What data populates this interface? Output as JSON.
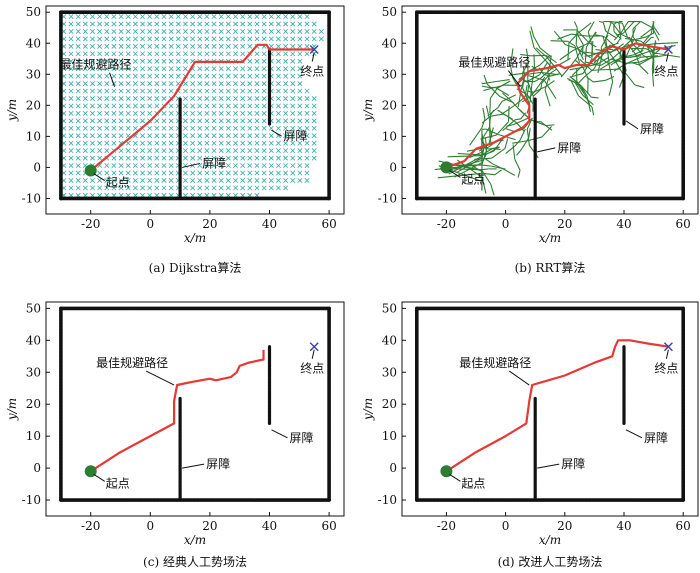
{
  "chart_data": [
    {
      "type": "line",
      "caption": "(a) Dijkstra算法",
      "xlabel": "x/m",
      "ylabel": "y/m",
      "xlim": [
        -35,
        65
      ],
      "ylim": [
        -15,
        52
      ],
      "xticks": [
        -20,
        0,
        20,
        40,
        60
      ],
      "yticks": [
        -10,
        0,
        10,
        20,
        30,
        40,
        50
      ],
      "labels": {
        "start": "起点",
        "goal": "终点",
        "obstacle": "屏障",
        "path": "最佳规避路径"
      },
      "start": [
        -20,
        -1
      ],
      "goal": [
        55,
        38
      ],
      "boundary": [
        [
          -30,
          -10
        ],
        [
          60,
          -10
        ],
        [
          60,
          50
        ],
        [
          -30,
          50
        ]
      ],
      "obstacles": [
        [
          [
            10,
            -10
          ],
          [
            10,
            22
          ]
        ],
        [
          [
            40,
            14
          ],
          [
            40,
            38
          ]
        ]
      ],
      "path": [
        [
          -20,
          -1
        ],
        [
          -10,
          7
        ],
        [
          0,
          15
        ],
        [
          8,
          23
        ],
        [
          15,
          34
        ],
        [
          31,
          34
        ],
        [
          36,
          39.5
        ],
        [
          39,
          39.5
        ],
        [
          40,
          38
        ],
        [
          55,
          38
        ]
      ],
      "explored_region": [
        [
          -29,
          49
        ],
        [
          53,
          49
        ],
        [
          54,
          47
        ],
        [
          58,
          45
        ],
        [
          57,
          36
        ],
        [
          52,
          34
        ],
        [
          51,
          27
        ],
        [
          57,
          22
        ],
        [
          56,
          6
        ],
        [
          53,
          -5
        ],
        [
          33,
          -10
        ],
        [
          -29,
          -10
        ]
      ],
      "explored_color": "#33aaaa"
    },
    {
      "type": "line",
      "caption": "(b) RRT算法",
      "xlabel": "x/m",
      "ylabel": "y/m",
      "xlim": [
        -35,
        65
      ],
      "ylim": [
        -15,
        52
      ],
      "xticks": [
        -20,
        0,
        20,
        40,
        60
      ],
      "yticks": [
        -10,
        0,
        10,
        20,
        30,
        40,
        50
      ],
      "labels": {
        "start": "起点",
        "goal": "终点",
        "obstacle": "屏障",
        "path": "最佳规避路径"
      },
      "start": [
        -20,
        0
      ],
      "goal": [
        55,
        38
      ],
      "boundary": [
        [
          -30,
          -10
        ],
        [
          60,
          -10
        ],
        [
          60,
          50
        ],
        [
          -30,
          50
        ]
      ],
      "obstacles": [
        [
          [
            10,
            -10
          ],
          [
            10,
            22
          ]
        ],
        [
          [
            40,
            14
          ],
          [
            40,
            38
          ]
        ]
      ],
      "path": [
        [
          -20,
          0
        ],
        [
          -14,
          2
        ],
        [
          -10,
          6
        ],
        [
          -4,
          8
        ],
        [
          2,
          11
        ],
        [
          6,
          13
        ],
        [
          8,
          15
        ],
        [
          8,
          20
        ],
        [
          5,
          24
        ],
        [
          4,
          27
        ],
        [
          8,
          31
        ],
        [
          14,
          32
        ],
        [
          18,
          33
        ],
        [
          20,
          32
        ],
        [
          24,
          33
        ],
        [
          28,
          33
        ],
        [
          32,
          37
        ],
        [
          36,
          39
        ],
        [
          40,
          38
        ],
        [
          44,
          40
        ],
        [
          49,
          39
        ],
        [
          55,
          38
        ]
      ],
      "tree_color": "#2e7d32"
    },
    {
      "type": "line",
      "caption": "(c) 经典人工势场法",
      "xlabel": "x/m",
      "ylabel": "y/m",
      "xlim": [
        -35,
        65
      ],
      "ylim": [
        -15,
        52
      ],
      "xticks": [
        -20,
        0,
        20,
        40,
        60
      ],
      "yticks": [
        -10,
        0,
        10,
        20,
        30,
        40,
        50
      ],
      "labels": {
        "start": "起点",
        "goal": "终点",
        "obstacle": "屏障",
        "path": "最佳规避路径"
      },
      "start": [
        -20,
        -1
      ],
      "goal": [
        55,
        38
      ],
      "boundary": [
        [
          -30,
          -10
        ],
        [
          60,
          -10
        ],
        [
          60,
          50
        ],
        [
          -30,
          50
        ]
      ],
      "obstacles": [
        [
          [
            10,
            -10
          ],
          [
            10,
            22
          ]
        ],
        [
          [
            40,
            14
          ],
          [
            40,
            38
          ]
        ]
      ],
      "path": [
        [
          -20,
          -1
        ],
        [
          -10,
          5
        ],
        [
          0,
          10
        ],
        [
          8,
          14
        ],
        [
          8,
          21
        ],
        [
          9,
          26
        ],
        [
          14,
          27
        ],
        [
          20,
          28
        ],
        [
          22,
          27.5
        ],
        [
          27,
          28.5
        ],
        [
          29,
          30
        ],
        [
          30,
          32
        ],
        [
          33,
          33
        ],
        [
          38,
          34
        ],
        [
          38,
          37
        ]
      ]
    },
    {
      "type": "line",
      "caption": "(d) 改进人工势场法",
      "xlabel": "x/m",
      "ylabel": "y/m",
      "xlim": [
        -35,
        65
      ],
      "ylim": [
        -15,
        52
      ],
      "xticks": [
        -20,
        0,
        20,
        40,
        60
      ],
      "yticks": [
        -10,
        0,
        10,
        20,
        30,
        40,
        50
      ],
      "labels": {
        "start": "起点",
        "goal": "终点",
        "obstacle": "屏障",
        "path": "最佳规避路径"
      },
      "start": [
        -20,
        -1
      ],
      "goal": [
        55,
        38
      ],
      "boundary": [
        [
          -30,
          -10
        ],
        [
          60,
          -10
        ],
        [
          60,
          50
        ],
        [
          -30,
          50
        ]
      ],
      "obstacles": [
        [
          [
            10,
            -10
          ],
          [
            10,
            22
          ]
        ],
        [
          [
            40,
            14
          ],
          [
            40,
            38
          ]
        ]
      ],
      "path": [
        [
          -20,
          -1
        ],
        [
          -10,
          5
        ],
        [
          0,
          10
        ],
        [
          7,
          14
        ],
        [
          8,
          21
        ],
        [
          9,
          26
        ],
        [
          20,
          29
        ],
        [
          30,
          33
        ],
        [
          36,
          35
        ],
        [
          37,
          38
        ],
        [
          38,
          40
        ],
        [
          42,
          40
        ],
        [
          48,
          39
        ],
        [
          55,
          38
        ]
      ]
    }
  ],
  "colors": {
    "path": "#e53935",
    "start": "#2e7d32",
    "goal": "#3f3fa8",
    "wall": "#111111",
    "grid_bg": "#ffffff"
  }
}
